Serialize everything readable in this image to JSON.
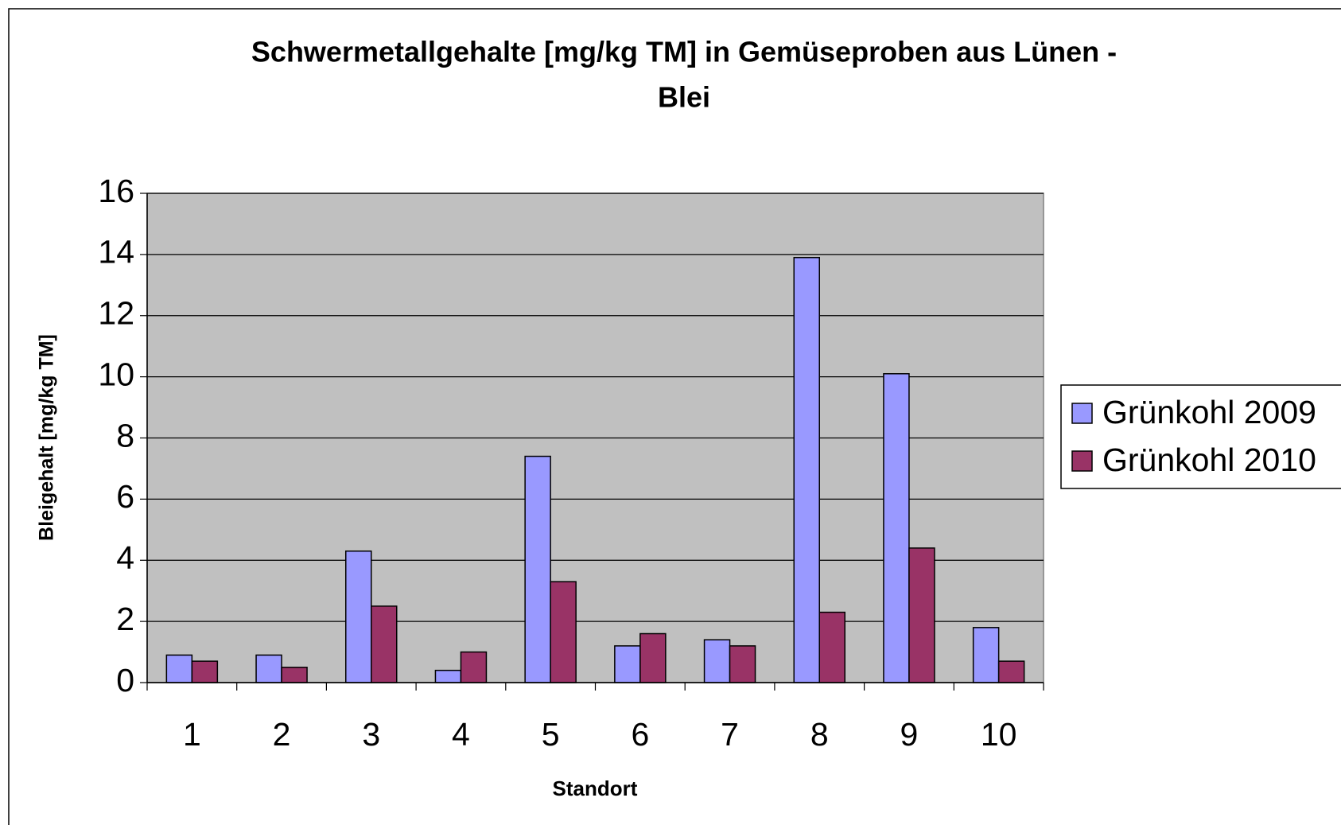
{
  "chart_data": {
    "type": "bar",
    "title": [
      "Schwermetallgehalte [mg/kg TM] in Gemüseproben aus Lünen -",
      "Blei"
    ],
    "x_label": "Standort",
    "y_label": "Bleigehalt [mg/kg TM]",
    "categories": [
      "1",
      "2",
      "3",
      "4",
      "5",
      "6",
      "7",
      "8",
      "9",
      "10"
    ],
    "series": [
      {
        "name": "Grünkohl 2009",
        "color": "#9999ff",
        "values": [
          0.9,
          0.9,
          4.3,
          0.4,
          7.4,
          1.2,
          1.4,
          13.9,
          10.1,
          1.8
        ]
      },
      {
        "name": "Grünkohl 2010",
        "color": "#993366",
        "values": [
          0.7,
          0.5,
          2.5,
          1.0,
          3.3,
          1.6,
          1.2,
          2.3,
          4.4,
          0.7
        ]
      }
    ],
    "ylim": [
      0,
      16
    ],
    "yticks": [
      0,
      2,
      4,
      6,
      8,
      10,
      12,
      14,
      16
    ],
    "grid": true,
    "plot_background": "#c0c0c0",
    "legend": "right"
  }
}
